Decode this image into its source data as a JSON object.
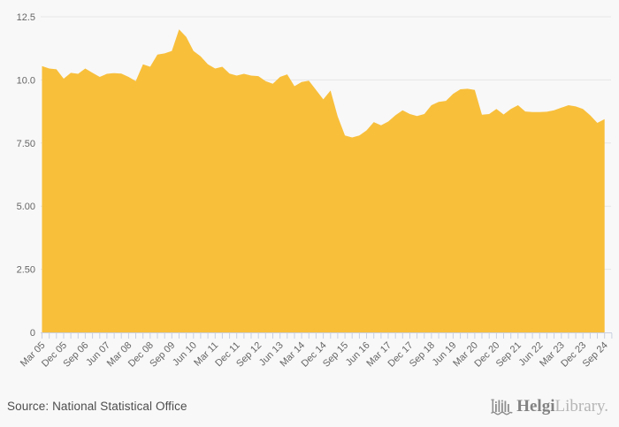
{
  "chart_data": {
    "type": "area",
    "title": "",
    "xlabel": "",
    "ylabel": "",
    "ylim": [
      0,
      12.5
    ],
    "grid": true,
    "area_color": "#F8BF3B",
    "grid_color": "#e6e6e6",
    "axis_color": "#c9cfde",
    "label_color": "#666666",
    "y_ticks": [
      [
        0,
        "0"
      ],
      [
        2.5,
        "2.50"
      ],
      [
        5,
        "5.00"
      ],
      [
        7.5,
        "7.50"
      ],
      [
        10,
        "10.0"
      ],
      [
        12.5,
        "12.5"
      ]
    ],
    "x_tick_labels": [
      "Mar 05",
      "Dec 05",
      "Sep 06",
      "Jun 07",
      "Mar 08",
      "Dec 08",
      "Sep 09",
      "Jun 10",
      "Mar 11",
      "Dec 11",
      "Sep 12",
      "Jun 13",
      "Mar 14",
      "Dec 14",
      "Sep 15",
      "Jun 16",
      "Mar 17",
      "Dec 17",
      "Sep 18",
      "Jun 19",
      "Mar 20",
      "Dec 20",
      "Sep 21",
      "Jun 22",
      "Mar 23",
      "Dec 23",
      "Sep 24"
    ],
    "x_label_every": 3,
    "categories": [
      "Mar 05",
      "Jun 05",
      "Sep 05",
      "Dec 05",
      "Mar 06",
      "Jun 06",
      "Sep 06",
      "Dec 06",
      "Mar 07",
      "Jun 07",
      "Sep 07",
      "Dec 07",
      "Mar 08",
      "Jun 08",
      "Sep 08",
      "Dec 08",
      "Mar 09",
      "Jun 09",
      "Sep 09",
      "Dec 09",
      "Mar 10",
      "Jun 10",
      "Sep 10",
      "Dec 10",
      "Mar 11",
      "Jun 11",
      "Sep 11",
      "Dec 11",
      "Mar 12",
      "Jun 12",
      "Sep 12",
      "Dec 12",
      "Mar 13",
      "Jun 13",
      "Sep 13",
      "Dec 13",
      "Mar 14",
      "Jun 14",
      "Sep 14",
      "Dec 14",
      "Mar 15",
      "Jun 15",
      "Sep 15",
      "Dec 15",
      "Mar 16",
      "Jun 16",
      "Sep 16",
      "Dec 16",
      "Mar 17",
      "Jun 17",
      "Sep 17",
      "Dec 17",
      "Mar 18",
      "Jun 18",
      "Sep 18",
      "Dec 18",
      "Mar 19",
      "Jun 19",
      "Sep 19",
      "Dec 19",
      "Mar 20",
      "Jun 20",
      "Sep 20",
      "Dec 20",
      "Mar 21",
      "Jun 21",
      "Sep 21",
      "Dec 21",
      "Mar 22",
      "Jun 22",
      "Sep 22",
      "Dec 22",
      "Mar 23",
      "Jun 23",
      "Sep 23",
      "Dec 23",
      "Mar 24",
      "Jun 24",
      "Sep 24"
    ],
    "values": [
      10.55,
      10.45,
      10.42,
      10.05,
      10.28,
      10.24,
      10.45,
      10.28,
      10.12,
      10.24,
      10.27,
      10.25,
      10.12,
      9.95,
      10.62,
      10.52,
      11.0,
      11.05,
      11.15,
      12.0,
      11.7,
      11.15,
      10.93,
      10.62,
      10.45,
      10.52,
      10.25,
      10.17,
      10.24,
      10.17,
      10.15,
      9.95,
      9.85,
      10.12,
      10.22,
      9.75,
      9.92,
      9.97,
      9.6,
      9.23,
      9.58,
      8.55,
      7.8,
      7.72,
      7.8,
      8.0,
      8.33,
      8.2,
      8.35,
      8.6,
      8.8,
      8.65,
      8.57,
      8.65,
      9.0,
      9.13,
      9.17,
      9.45,
      9.63,
      9.65,
      9.6,
      8.62,
      8.65,
      8.85,
      8.63,
      8.85,
      9.0,
      8.75,
      8.73,
      8.73,
      8.74,
      8.8,
      8.9,
      9.0,
      8.95,
      8.85,
      8.6,
      8.3,
      8.45
    ]
  },
  "footer": {
    "source": "Source: National Statistical Office",
    "logo_helgi": "Helgi",
    "logo_library": "Library."
  }
}
